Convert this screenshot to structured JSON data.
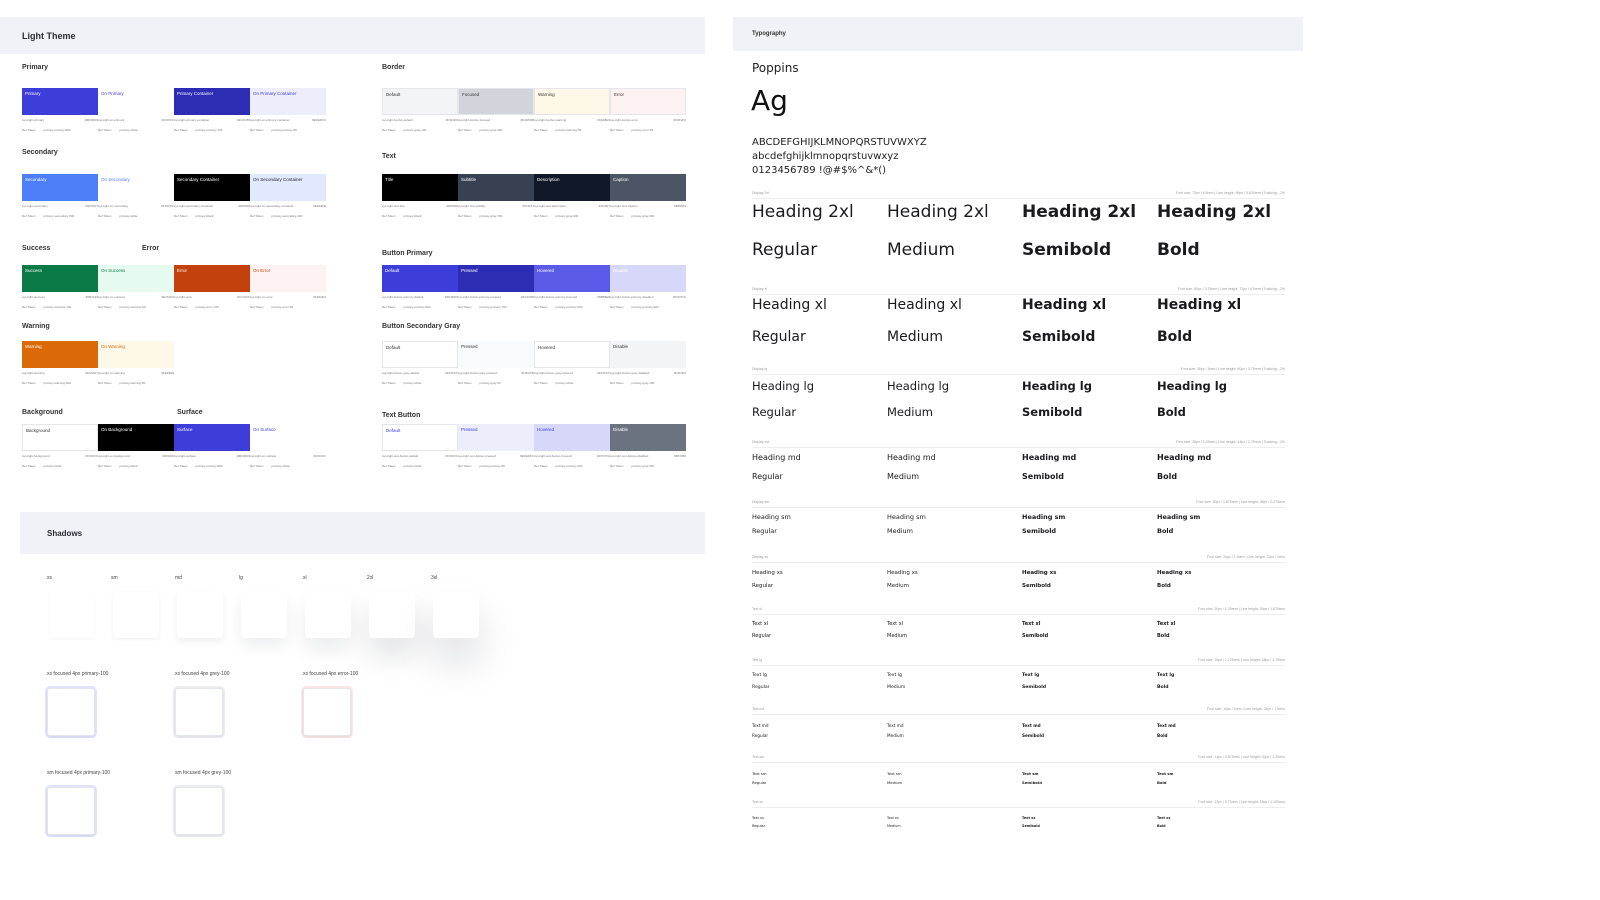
{
  "light_theme": {
    "header": "Light Theme",
    "groups": {
      "primary": "Primary",
      "secondary": "Secondary",
      "success": "Success",
      "error": "Error",
      "warning": "Warning",
      "background": "Background",
      "surface": "Surface",
      "border": "Border",
      "text": "Text",
      "button_primary": "Button Primary",
      "button_secondary_gray": "Button Secondary Gray",
      "text_button": "Text Button"
    },
    "swatches": {
      "primary": "Primary",
      "on_primary": "On Primary",
      "primary_container": "Primary Container",
      "on_primary_container": "On Primary Container",
      "secondary": "Secondary",
      "on_secondary": "On Secondary",
      "secondary_container": "Secondary Container",
      "on_secondary_container": "On Secondary Container",
      "success": "Success",
      "on_success": "On Success",
      "error": "Error",
      "on_error": "On Error",
      "warning": "Warning",
      "on_warning": "On Warning",
      "background": "Background",
      "on_background": "On Background",
      "surface": "Surface",
      "on_surface": "On Surface",
      "border_default": "Default",
      "border_focused": "Focused",
      "border_warning": "Warning",
      "border_error": "Error",
      "text_title": "Title",
      "text_subtitle": "Subtitle",
      "text_description": "Description",
      "text_caption": "Caption",
      "bp_default": "Default",
      "bp_pressed": "Pressed",
      "bp_hovered": "Hovered",
      "bp_disable": "Disable",
      "bs_default": "Default",
      "bs_pressed": "Pressed",
      "bs_hovered": "Hovered",
      "bs_disable": "Disable",
      "tb_default": "Default",
      "tb_pressed": "Pressed",
      "tb_hovered": "Hovered",
      "tb_disable": "Disable"
    },
    "meta": {
      "primary": [
        "sys-light-primary",
        "#3D3DD9",
        "Ref Token",
        "primary-primary-600"
      ],
      "on_primary": [
        "sys-light-on-primary",
        "#FFFFFF",
        "Ref Token",
        "primary-white"
      ],
      "primary_container": [
        "sys-light-primary-container",
        "#2C2CB5",
        "Ref Token",
        "primary-primary-700"
      ],
      "on_primary_container": [
        "sys-light-on-primary-container",
        "#EDEDFC",
        "Ref Token",
        "primary-primary-50"
      ],
      "secondary": [
        "sys-light-secondary",
        "#4D7DF7",
        "Ref Token",
        "primary-secondary-500"
      ],
      "on_secondary": [
        "sys-light-on-secondary",
        "#FFFFFF",
        "Ref Token",
        "primary-white"
      ],
      "secondary_container": [
        "sys-light-secondary-container",
        "#000000",
        "Ref Token",
        "primary-black"
      ],
      "on_secondary_container": [
        "sys-light-on-secondary-container",
        "#E1E9FE",
        "Ref Token",
        "primary-secondary-100"
      ],
      "success": [
        "sys-light-success",
        "#0B7A46",
        "Ref Token",
        "primary-success-700"
      ],
      "on_success": [
        "sys-light-on-success",
        "#E7FAF0",
        "Ref Token",
        "primary-success-50"
      ],
      "error": [
        "sys-light-error",
        "#C2410C",
        "Ref Token",
        "primary-error-700"
      ],
      "on_error": [
        "sys-light-on-error",
        "#FDF2F2",
        "Ref Token",
        "primary-error-50"
      ],
      "warning": [
        "sys-light-warning",
        "#DA6A07",
        "Ref Token",
        "primary-warning-600"
      ],
      "on_warning": [
        "sys-light-on-warning",
        "#FEF8E9",
        "Ref Token",
        "primary-warning-50"
      ],
      "background": [
        "sys-light-background",
        "#FFFFFF",
        "Ref Token",
        "primary-white"
      ],
      "on_background": [
        "sys-light-on-background",
        "#000000",
        "Ref Token",
        "primary-black"
      ],
      "surface": [
        "sys-light-surface",
        "#3D3DD9",
        "Ref Token",
        "primary-primary-600"
      ],
      "on_surface": [
        "sys-light-on-surface",
        "#FFFFFF",
        "Ref Token",
        "primary-white"
      ],
      "border_default": [
        "sys-light-border-default",
        "#F3F4F6",
        "Ref Token",
        "primary-gray-100"
      ],
      "border_focused": [
        "sys-light-border-focused",
        "#D1D5DB",
        "Ref Token",
        "primary-gray-300"
      ],
      "border_warning": [
        "sys-light-border-warning",
        "#FEF8E9",
        "Ref Token",
        "primary-warning-50"
      ],
      "border_error": [
        "sys-light-border-error",
        "#FDF2F2",
        "Ref Token",
        "primary-error-50"
      ],
      "text_title": [
        "sys-light-text-title",
        "#000000",
        "Ref Token",
        "primary-black"
      ],
      "text_subtitle": [
        "sys-light-text-subtitle",
        "#374151",
        "Ref Token",
        "primary-gray-700"
      ],
      "text_description": [
        "sys-light-text-description",
        "#111827",
        "Ref Token",
        "primary-gray-900"
      ],
      "text_caption": [
        "sys-light-text-caption",
        "#4B5563",
        "Ref Token",
        "primary-gray-600"
      ],
      "bp_default": [
        "sys-light-button-primary-default",
        "#3D3DD9",
        "Ref Token",
        "primary-primary-600"
      ],
      "bp_pressed": [
        "sys-light-button-primary-pressed",
        "#2C2CB5",
        "Ref Token",
        "primary-primary-700"
      ],
      "bp_hovered": [
        "sys-light-button-primary-hovered",
        "#5B5BE8",
        "Ref Token",
        "primary-primary-500"
      ],
      "bp_disable": [
        "sys-light-button-primary-disabled",
        "#D7D7FA",
        "Ref Token",
        "primary-primary-200"
      ],
      "bs_default": [
        "sys-light-button-gray-default",
        "#FFFFFF",
        "Ref Token",
        "primary-white"
      ],
      "bs_pressed": [
        "sys-light-button-gray-pressed",
        "#F9FAFB",
        "Ref Token",
        "primary-gray-50"
      ],
      "bs_hovered": [
        "sys-light-button-gray-hovered",
        "#FFFFFF",
        "Ref Token",
        "primary-white"
      ],
      "bs_disable": [
        "sys-light-button-gray-disabled",
        "#F3F4F6",
        "Ref Token",
        "primary-gray-100"
      ],
      "tb_default": [
        "sys-light-text-button-default",
        "#FFFFFF",
        "Ref Token",
        "primary-white"
      ],
      "tb_pressed": [
        "sys-light-text-button-pressed",
        "#EDEDFC",
        "Ref Token",
        "primary-primary-50"
      ],
      "tb_hovered": [
        "sys-light-text-button-hovered",
        "#D7D7FA",
        "Ref Token",
        "primary-primary-200"
      ],
      "tb_disable": [
        "sys-light-text-button-disabled",
        "#6B7280",
        "Ref Token",
        "primary-gray-500"
      ]
    }
  },
  "shadows": {
    "header": "Shadows",
    "sizes": [
      "xs",
      "sm",
      "md",
      "lg",
      "xl",
      "2xl",
      "3xl"
    ],
    "focused": [
      "xs focused 4px primary-100",
      "xs focused 4px grey-100",
      "xs focused 4px error-100",
      "sm focused 4px primary-100",
      "sm focused 4px grey-100"
    ]
  },
  "typography": {
    "header": "Typography",
    "font_name": "Poppins",
    "sample_ag": "Ag",
    "upper": "ABCDEFGHIJKLMNOPQRSTUVWXYZ",
    "lower": "abcdefghijklmnopqrstuvwxyz",
    "digits": "0123456789 !@#$%^&*()",
    "weights": [
      "Regular",
      "Medium",
      "Semibold",
      "Bold"
    ],
    "rows": [
      {
        "label": "Display 2xl",
        "spec": "Font size: 72px / 4.5rem | Line height: 90px / 5.625rem | Tracking: -2%",
        "name": "Heading 2xl"
      },
      {
        "label": "Display xl",
        "spec": "Font size: 60px / 3.75rem | Line height: 72px / 4.5rem | Tracking: -2%",
        "name": "Heading xl"
      },
      {
        "label": "Display lg",
        "spec": "Font size: 48px / 3rem | Line height: 60px / 3.75rem | Tracking: -2%",
        "name": "Heading lg"
      },
      {
        "label": "Display md",
        "spec": "Font size: 36px / 2.25rem | Line height: 44px / 2.75rem | Tracking: -2%",
        "name": "Heading md"
      },
      {
        "label": "Display sm",
        "spec": "Font size: 30px / 1.875rem | Line height: 38px / 2.375rem",
        "name": "Heading sm"
      },
      {
        "label": "Display xs",
        "spec": "Font size: 24px / 1.5rem | Line height: 32px / 2rem",
        "name": "Heading xs"
      },
      {
        "label": "Text xl",
        "spec": "Font size: 20px / 1.25rem | Line height: 30px / 1.875rem",
        "name": "Text xl"
      },
      {
        "label": "Text lg",
        "spec": "Font size: 18px / 1.125rem | Line height: 28px / 1.75rem",
        "name": "Text lg"
      },
      {
        "label": "Text md",
        "spec": "Font size: 16px / 1rem | Line height: 24px / 1.5rem",
        "name": "Text md"
      },
      {
        "label": "Text sm",
        "spec": "Font size: 14px / 0.875rem | Line height: 20px / 1.25rem",
        "name": "Text sm"
      },
      {
        "label": "Text xs",
        "spec": "Font size: 12px / 0.75rem | Line height: 18px / 1.125rem",
        "name": "Text xs"
      }
    ]
  },
  "colors": {
    "primary": "#3D3DD9",
    "on_primary": "#FFFFFF",
    "primary_container": "#2C2CB5",
    "on_primary_container": "#EDEDFC",
    "secondary": "#4D7DF7",
    "on_secondary": "#FFFFFF",
    "secondary_container": "#000000",
    "on_secondary_container": "#E1E9FE",
    "success": "#0B7A46",
    "on_success": "#E7FAF0",
    "error": "#C2410C",
    "on_error": "#FDF2F2",
    "warning": "#DA6A07",
    "on_warning": "#FEF8E9",
    "background": "#FFFFFF",
    "on_background": "#000000",
    "surface": "#3D3DD9",
    "on_surface": "#FFFFFF",
    "border_default": "#F3F4F6",
    "border_focused": "#D1D5DB",
    "border_warning": "#FEF8E9",
    "border_error": "#FDF2F2",
    "text_title": "#000000",
    "text_subtitle": "#374151",
    "text_description": "#111827",
    "text_caption": "#4B5563",
    "bp_default": "#3D3DD9",
    "bp_pressed": "#2C2CB5",
    "bp_hovered": "#5B5BE8",
    "bp_disable": "#D7D7FA",
    "bs_default": "#FFFFFF",
    "bs_pressed": "#F9FAFB",
    "bs_hovered": "#FFFFFF",
    "bs_disable": "#F3F4F6",
    "tb_default": "#FFFFFF",
    "tb_pressed": "#EDEDFC",
    "tb_hovered": "#D7D7FA",
    "tb_disable": "#6B7280"
  }
}
